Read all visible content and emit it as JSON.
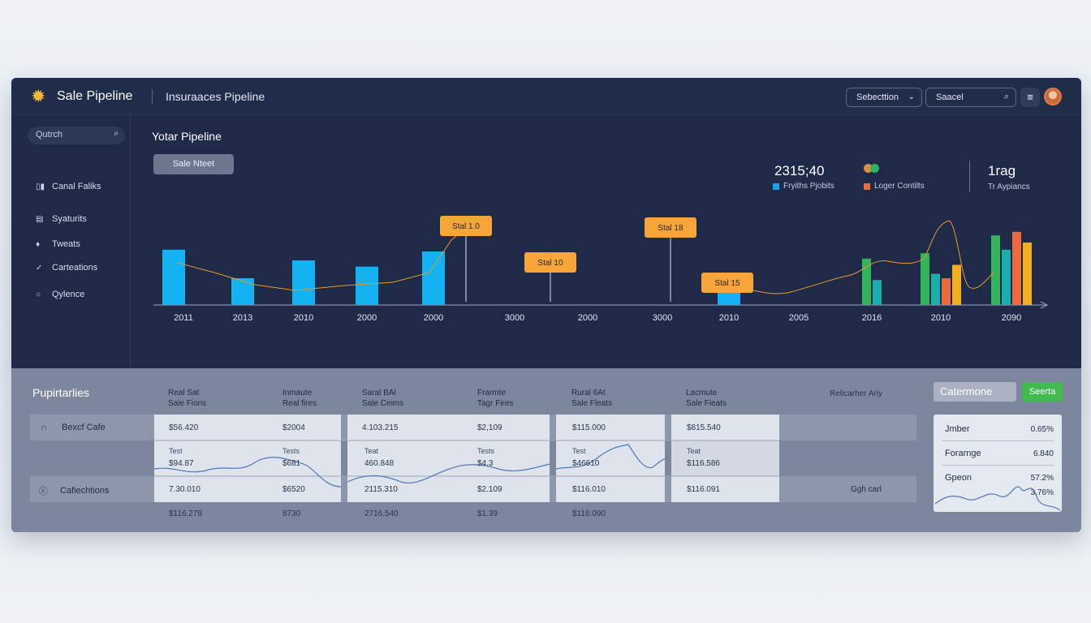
{
  "header": {
    "brand": "Sale Pipeline",
    "subtitle": "Insuraaces Pipeline",
    "dropdown_label": "Sebecttion",
    "search_placeholder": "Saacel",
    "logo_icon": "sun-logo-icon",
    "menu_icon": "hamburger-icon"
  },
  "sidebar": {
    "search_placeholder": "Qutrch",
    "items": [
      {
        "label": "Canal Faliks",
        "icon": "bar-chart-icon"
      },
      {
        "label": "Syaturits",
        "icon": "list-icon"
      },
      {
        "label": "Tweats",
        "icon": "pin-icon"
      },
      {
        "label": "Carteations",
        "icon": "check-icon"
      },
      {
        "label": "Qylence",
        "icon": "circle-icon"
      }
    ]
  },
  "main": {
    "title": "Yotar Pipeline",
    "chip": "Sale Nteet",
    "kpi_value": "2315;40",
    "legend": [
      {
        "label": "Fryiths Pjobits",
        "color": "#1aa3e8"
      },
      {
        "label": "Loger Contilts",
        "color": "#ee6a3a"
      }
    ],
    "kpi_right_value": "1rag",
    "kpi_right_label": "Tr Aypiancs"
  },
  "chart_data": {
    "type": "bar",
    "x_tick_labels": [
      "2011",
      "2013",
      "2010",
      "2000",
      "2000",
      "3000",
      "2000",
      "3000",
      "2010",
      "2005",
      "2016",
      "2010",
      "2090"
    ],
    "series": [
      {
        "values": [
          62,
          30,
          50,
          43,
          60,
          0,
          0,
          0,
          25,
          0,
          0,
          0,
          0
        ],
        "color": "#14b2f0"
      },
      {
        "values": [
          0,
          0,
          0,
          0,
          0,
          0,
          0,
          0,
          0,
          0,
          52,
          58,
          78
        ],
        "color": "#33b35a"
      },
      {
        "values": [
          0,
          0,
          0,
          0,
          0,
          0,
          0,
          0,
          0,
          0,
          28,
          35,
          62
        ],
        "color": "#18b0ad"
      },
      {
        "values": [
          0,
          0,
          0,
          0,
          0,
          0,
          0,
          0,
          0,
          0,
          0,
          30,
          82
        ],
        "color": "#ee6a3a"
      },
      {
        "values": [
          0,
          0,
          0,
          0,
          0,
          0,
          0,
          0,
          0,
          0,
          0,
          45,
          70
        ],
        "color": "#f2b01e"
      }
    ],
    "annotations": [
      {
        "label": "Stal 1.0",
        "x_index": 4
      },
      {
        "label": "Stal 10",
        "x_index": 5
      },
      {
        "label": "Stal 18",
        "x_index": 7
      },
      {
        "label": "Stal 15",
        "x_index": 8
      }
    ],
    "ylim": [
      0,
      100
    ]
  },
  "bottom": {
    "title": "Pupirtarlies",
    "columns": [
      {
        "line1": "Real Sat",
        "line2": "Sale Fions"
      },
      {
        "line1": "Inmaute",
        "line2": "Real fires"
      },
      {
        "line1": "Saral BAl",
        "line2": "Sale Ceims"
      },
      {
        "line1": "Frarmte",
        "line2": "Tagr Fires"
      },
      {
        "line1": "Rural 6At",
        "line2": "Sale Fleats"
      },
      {
        "line1": "Lacmute",
        "line2": "Sale Fleats"
      }
    ],
    "ra_header": "Relicarher Ariy",
    "compare_button": "Catermone",
    "go_button": "Seerta",
    "rows": [
      {
        "label": "Bexcf Cafe",
        "icon": "headset-icon",
        "values": [
          "$56.420",
          "$2004",
          "4.103.215",
          "$2,109",
          "$115.000",
          "$815.540"
        ]
      },
      {
        "sub": [
          "Test",
          "Tests",
          "Teat",
          "Tests",
          "Test",
          "Teat"
        ],
        "values": [
          "$94.87",
          "$681",
          "460.848",
          "$4.3",
          "$46610",
          "$116.586"
        ]
      },
      {
        "label": "Cafiechtions",
        "icon": "circle-c-icon",
        "values": [
          "7.30.010",
          "$6520",
          "2115.310",
          "$2.109",
          "$116.010",
          "$116.091"
        ],
        "extra": "Ggh carl"
      },
      {
        "values": [
          "$116.278",
          "8730",
          "2716.540",
          "$1.39",
          "$116.090"
        ]
      }
    ],
    "side_card": [
      {
        "label": "Jmber",
        "value": "0.65%"
      },
      {
        "label": "Forarnge",
        "value": "6.840"
      },
      {
        "label": "Gpeon",
        "value": "57.2%"
      },
      {
        "label": "",
        "value": "3.76%"
      }
    ]
  }
}
